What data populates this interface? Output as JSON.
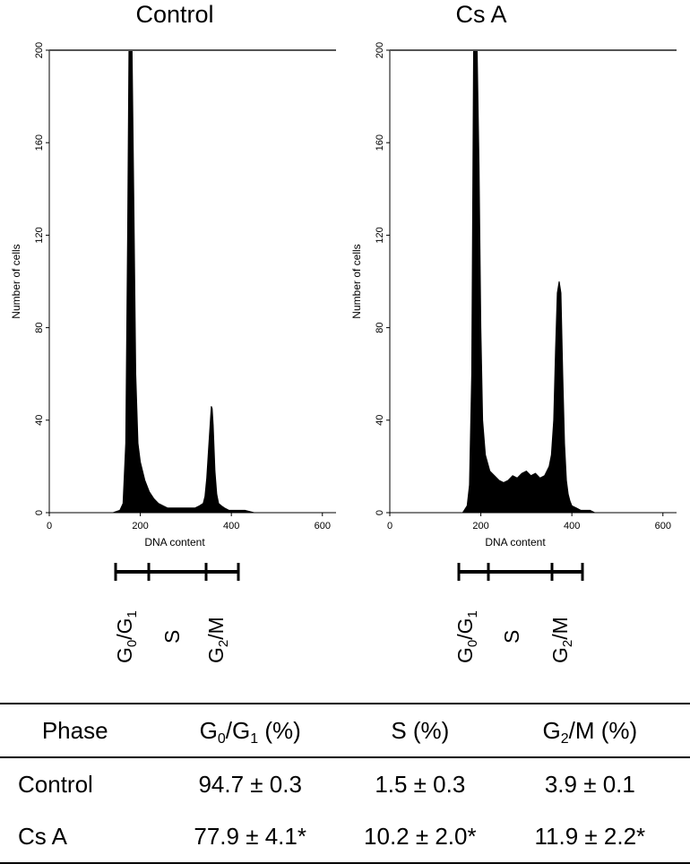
{
  "chart_data": [
    {
      "type": "area",
      "title": "Control",
      "xlabel": "DNA content",
      "ylabel": "Number of cells",
      "xlim": [
        0,
        630
      ],
      "ylim": [
        0,
        200
      ],
      "x_ticks": [
        "0",
        "200",
        "400",
        "600"
      ],
      "y_ticks": [
        "0",
        "40",
        "80",
        "120",
        "160",
        "200"
      ],
      "grid": false,
      "series": [
        {
          "x": [
            140,
            155,
            162,
            168,
            172,
            175,
            178,
            182,
            186,
            190,
            195,
            200,
            210,
            220,
            230,
            240,
            250,
            260,
            270,
            280,
            290,
            300,
            310,
            320,
            330,
            338,
            342,
            346,
            350,
            354,
            356,
            358,
            360,
            364,
            368,
            372,
            378,
            385,
            395,
            410,
            430,
            450
          ],
          "values": [
            0,
            1,
            4,
            30,
            120,
            200,
            200,
            200,
            130,
            60,
            30,
            22,
            14,
            9,
            6,
            4,
            3,
            2,
            2,
            2,
            2,
            2,
            2,
            2,
            3,
            4,
            7,
            15,
            28,
            40,
            46,
            45,
            38,
            18,
            8,
            4,
            3,
            2,
            1,
            1,
            1,
            0
          ]
        }
      ],
      "gate": {
        "phases": [
          {
            "main": "G",
            "sub": "0",
            "mid": "/G",
            "sub2": "1"
          },
          {
            "main": "S",
            "sub": "",
            "mid": "",
            "sub2": ""
          },
          {
            "main": "G",
            "sub": "2",
            "mid": "/M",
            "sub2": ""
          }
        ]
      }
    },
    {
      "type": "area",
      "title": "Cs A",
      "xlabel": "DNA content",
      "ylabel": "Number of cells",
      "xlim": [
        0,
        630
      ],
      "ylim": [
        0,
        200
      ],
      "x_ticks": [
        "0",
        "200",
        "400",
        "600"
      ],
      "y_ticks": [
        "0",
        "40",
        "80",
        "120",
        "160",
        "200"
      ],
      "grid": false,
      "series": [
        {
          "x": [
            160,
            170,
            175,
            180,
            184,
            188,
            192,
            196,
            200,
            204,
            210,
            220,
            230,
            240,
            250,
            260,
            270,
            280,
            290,
            300,
            310,
            320,
            330,
            340,
            350,
            355,
            360,
            364,
            368,
            372,
            376,
            380,
            384,
            388,
            392,
            396,
            400,
            410,
            420,
            430,
            440,
            450
          ],
          "values": [
            0,
            3,
            12,
            60,
            200,
            200,
            200,
            150,
            80,
            40,
            25,
            18,
            16,
            14,
            13,
            14,
            16,
            15,
            17,
            18,
            16,
            17,
            15,
            16,
            20,
            25,
            40,
            70,
            95,
            100,
            95,
            60,
            30,
            14,
            8,
            5,
            3,
            2,
            1,
            1,
            1,
            0
          ]
        }
      ],
      "gate": {
        "phases": [
          {
            "main": "G",
            "sub": "0",
            "mid": "/G",
            "sub2": "1"
          },
          {
            "main": "S",
            "sub": "",
            "mid": "",
            "sub2": ""
          },
          {
            "main": "G",
            "sub": "2",
            "mid": "/M",
            "sub2": ""
          }
        ]
      }
    }
  ],
  "table": {
    "headers": {
      "phase": "Phase",
      "g0g1_main": "G",
      "g0g1_sub0": "0",
      "g0g1_mid": "/G",
      "g0g1_sub1": "1",
      "g0g1_tail": " (%)",
      "s": "S (%)",
      "g2m_main": "G",
      "g2m_sub": "2",
      "g2m_tail": "/M (%)"
    },
    "rows": [
      {
        "label": "Control",
        "g0g1": "94.7 ± 0.3",
        "s": "1.5 ± 0.3",
        "g2m": "3.9 ± 0.1"
      },
      {
        "label": "Cs A",
        "g0g1": "77.9 ± 4.1*",
        "s": "10.2 ± 2.0*",
        "g2m": "11.9 ± 2.2*"
      }
    ]
  }
}
